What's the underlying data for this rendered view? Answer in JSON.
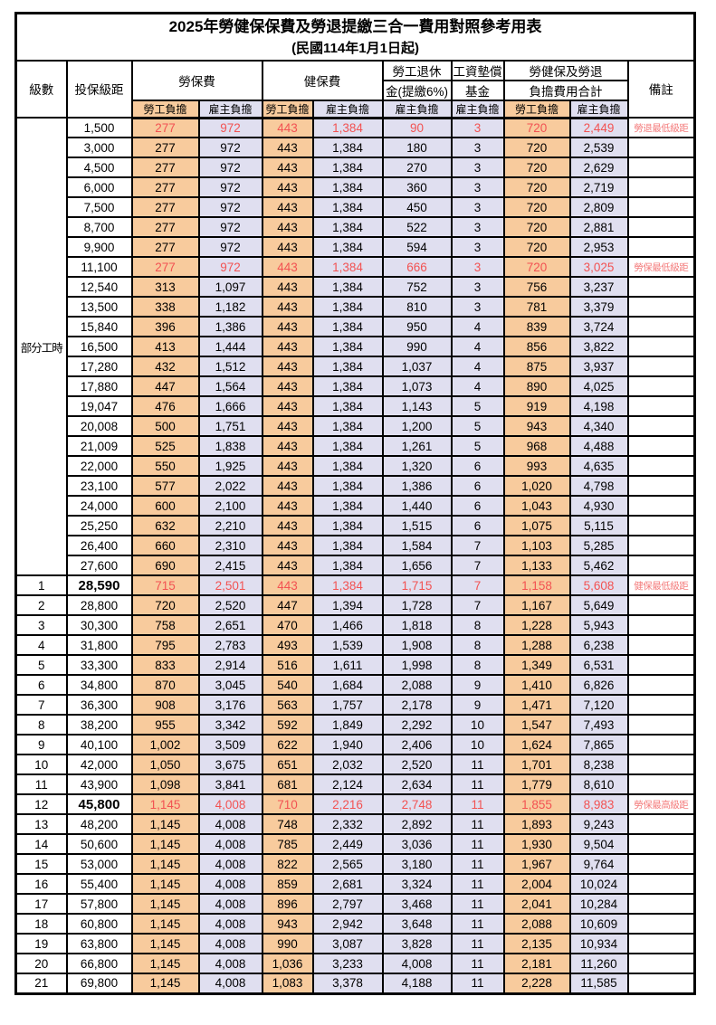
{
  "page": {
    "title": "2025年勞健保保費及勞退提繳三合一費用對照參考用表",
    "subtitle": "(民國114年1月1日起)"
  },
  "table": {
    "headers": {
      "level": "級數",
      "bracket": "投保級距",
      "labor_ins": "勞保費",
      "health_ins": "健保費",
      "pension_l1": "勞工退休",
      "pension_l2": "金(提繳6%)",
      "wage_fund_l1": "工資墊償",
      "wage_fund_l2": "基金",
      "total_l1": "勞健保及勞退",
      "total_l2": "負擔費用合計",
      "note": "備註",
      "employee": "勞工負擔",
      "employer": "雇主負擔"
    },
    "group_label": "部分工時",
    "group_span": 23,
    "colors": {
      "employee_bg": "#F8CB9D",
      "employer_bg": "#E0DFF0",
      "highlight_text": "#F25252",
      "note_text": "#F47C7C",
      "border": "#000000"
    },
    "rows": [
      {
        "level": "",
        "bracket": "1,500",
        "values": [
          "277",
          "972",
          "443",
          "1,384",
          "90",
          "3",
          "720",
          "2,449"
        ],
        "note": "勞退最低級距",
        "highlight": true
      },
      {
        "level": "",
        "bracket": "3,000",
        "values": [
          "277",
          "972",
          "443",
          "1,384",
          "180",
          "3",
          "720",
          "2,539"
        ],
        "note": ""
      },
      {
        "level": "",
        "bracket": "4,500",
        "values": [
          "277",
          "972",
          "443",
          "1,384",
          "270",
          "3",
          "720",
          "2,629"
        ],
        "note": ""
      },
      {
        "level": "",
        "bracket": "6,000",
        "values": [
          "277",
          "972",
          "443",
          "1,384",
          "360",
          "3",
          "720",
          "2,719"
        ],
        "note": ""
      },
      {
        "level": "",
        "bracket": "7,500",
        "values": [
          "277",
          "972",
          "443",
          "1,384",
          "450",
          "3",
          "720",
          "2,809"
        ],
        "note": ""
      },
      {
        "level": "",
        "bracket": "8,700",
        "values": [
          "277",
          "972",
          "443",
          "1,384",
          "522",
          "3",
          "720",
          "2,881"
        ],
        "note": ""
      },
      {
        "level": "",
        "bracket": "9,900",
        "values": [
          "277",
          "972",
          "443",
          "1,384",
          "594",
          "3",
          "720",
          "2,953"
        ],
        "note": ""
      },
      {
        "level": "",
        "bracket": "11,100",
        "values": [
          "277",
          "972",
          "443",
          "1,384",
          "666",
          "3",
          "720",
          "3,025"
        ],
        "note": "勞保最低級距",
        "highlight": true
      },
      {
        "level": "",
        "bracket": "12,540",
        "values": [
          "313",
          "1,097",
          "443",
          "1,384",
          "752",
          "3",
          "756",
          "3,237"
        ],
        "note": ""
      },
      {
        "level": "",
        "bracket": "13,500",
        "values": [
          "338",
          "1,182",
          "443",
          "1,384",
          "810",
          "3",
          "781",
          "3,379"
        ],
        "note": ""
      },
      {
        "level": "",
        "bracket": "15,840",
        "values": [
          "396",
          "1,386",
          "443",
          "1,384",
          "950",
          "4",
          "839",
          "3,724"
        ],
        "note": ""
      },
      {
        "level": "",
        "bracket": "16,500",
        "values": [
          "413",
          "1,444",
          "443",
          "1,384",
          "990",
          "4",
          "856",
          "3,822"
        ],
        "note": ""
      },
      {
        "level": "",
        "bracket": "17,280",
        "values": [
          "432",
          "1,512",
          "443",
          "1,384",
          "1,037",
          "4",
          "875",
          "3,937"
        ],
        "note": ""
      },
      {
        "level": "",
        "bracket": "17,880",
        "values": [
          "447",
          "1,564",
          "443",
          "1,384",
          "1,073",
          "4",
          "890",
          "4,025"
        ],
        "note": ""
      },
      {
        "level": "",
        "bracket": "19,047",
        "values": [
          "476",
          "1,666",
          "443",
          "1,384",
          "1,143",
          "5",
          "919",
          "4,198"
        ],
        "note": ""
      },
      {
        "level": "",
        "bracket": "20,008",
        "values": [
          "500",
          "1,751",
          "443",
          "1,384",
          "1,200",
          "5",
          "943",
          "4,340"
        ],
        "note": ""
      },
      {
        "level": "",
        "bracket": "21,009",
        "values": [
          "525",
          "1,838",
          "443",
          "1,384",
          "1,261",
          "5",
          "968",
          "4,488"
        ],
        "note": ""
      },
      {
        "level": "",
        "bracket": "22,000",
        "values": [
          "550",
          "1,925",
          "443",
          "1,384",
          "1,320",
          "6",
          "993",
          "4,635"
        ],
        "note": ""
      },
      {
        "level": "",
        "bracket": "23,100",
        "values": [
          "577",
          "2,022",
          "443",
          "1,384",
          "1,386",
          "6",
          "1,020",
          "4,798"
        ],
        "note": ""
      },
      {
        "level": "",
        "bracket": "24,000",
        "values": [
          "600",
          "2,100",
          "443",
          "1,384",
          "1,440",
          "6",
          "1,043",
          "4,930"
        ],
        "note": ""
      },
      {
        "level": "",
        "bracket": "25,250",
        "values": [
          "632",
          "2,210",
          "443",
          "1,384",
          "1,515",
          "6",
          "1,075",
          "5,115"
        ],
        "note": ""
      },
      {
        "level": "",
        "bracket": "26,400",
        "values": [
          "660",
          "2,310",
          "443",
          "1,384",
          "1,584",
          "7",
          "1,103",
          "5,285"
        ],
        "note": ""
      },
      {
        "level": "",
        "bracket": "27,600",
        "values": [
          "690",
          "2,415",
          "443",
          "1,384",
          "1,656",
          "7",
          "1,133",
          "5,462"
        ],
        "note": ""
      },
      {
        "level": "1",
        "bracket": "28,590",
        "values": [
          "715",
          "2,501",
          "443",
          "1,384",
          "1,715",
          "7",
          "1,158",
          "5,608"
        ],
        "note": "健保最低級距",
        "highlight": true,
        "bold": true
      },
      {
        "level": "2",
        "bracket": "28,800",
        "values": [
          "720",
          "2,520",
          "447",
          "1,394",
          "1,728",
          "7",
          "1,167",
          "5,649"
        ],
        "note": ""
      },
      {
        "level": "3",
        "bracket": "30,300",
        "values": [
          "758",
          "2,651",
          "470",
          "1,466",
          "1,818",
          "8",
          "1,228",
          "5,943"
        ],
        "note": ""
      },
      {
        "level": "4",
        "bracket": "31,800",
        "values": [
          "795",
          "2,783",
          "493",
          "1,539",
          "1,908",
          "8",
          "1,288",
          "6,238"
        ],
        "note": ""
      },
      {
        "level": "5",
        "bracket": "33,300",
        "values": [
          "833",
          "2,914",
          "516",
          "1,611",
          "1,998",
          "8",
          "1,349",
          "6,531"
        ],
        "note": ""
      },
      {
        "level": "6",
        "bracket": "34,800",
        "values": [
          "870",
          "3,045",
          "540",
          "1,684",
          "2,088",
          "9",
          "1,410",
          "6,826"
        ],
        "note": ""
      },
      {
        "level": "7",
        "bracket": "36,300",
        "values": [
          "908",
          "3,176",
          "563",
          "1,757",
          "2,178",
          "9",
          "1,471",
          "7,120"
        ],
        "note": ""
      },
      {
        "level": "8",
        "bracket": "38,200",
        "values": [
          "955",
          "3,342",
          "592",
          "1,849",
          "2,292",
          "10",
          "1,547",
          "7,493"
        ],
        "note": ""
      },
      {
        "level": "9",
        "bracket": "40,100",
        "values": [
          "1,002",
          "3,509",
          "622",
          "1,940",
          "2,406",
          "10",
          "1,624",
          "7,865"
        ],
        "note": ""
      },
      {
        "level": "10",
        "bracket": "42,000",
        "values": [
          "1,050",
          "3,675",
          "651",
          "2,032",
          "2,520",
          "11",
          "1,701",
          "8,238"
        ],
        "note": ""
      },
      {
        "level": "11",
        "bracket": "43,900",
        "values": [
          "1,098",
          "3,841",
          "681",
          "2,124",
          "2,634",
          "11",
          "1,779",
          "8,610"
        ],
        "note": ""
      },
      {
        "level": "12",
        "bracket": "45,800",
        "values": [
          "1,145",
          "4,008",
          "710",
          "2,216",
          "2,748",
          "11",
          "1,855",
          "8,983"
        ],
        "note": "勞保最高級距",
        "highlight": true,
        "bold": true
      },
      {
        "level": "13",
        "bracket": "48,200",
        "values": [
          "1,145",
          "4,008",
          "748",
          "2,332",
          "2,892",
          "11",
          "1,893",
          "9,243"
        ],
        "note": ""
      },
      {
        "level": "14",
        "bracket": "50,600",
        "values": [
          "1,145",
          "4,008",
          "785",
          "2,449",
          "3,036",
          "11",
          "1,930",
          "9,504"
        ],
        "note": ""
      },
      {
        "level": "15",
        "bracket": "53,000",
        "values": [
          "1,145",
          "4,008",
          "822",
          "2,565",
          "3,180",
          "11",
          "1,967",
          "9,764"
        ],
        "note": ""
      },
      {
        "level": "16",
        "bracket": "55,400",
        "values": [
          "1,145",
          "4,008",
          "859",
          "2,681",
          "3,324",
          "11",
          "2,004",
          "10,024"
        ],
        "note": ""
      },
      {
        "level": "17",
        "bracket": "57,800",
        "values": [
          "1,145",
          "4,008",
          "896",
          "2,797",
          "3,468",
          "11",
          "2,041",
          "10,284"
        ],
        "note": ""
      },
      {
        "level": "18",
        "bracket": "60,800",
        "values": [
          "1,145",
          "4,008",
          "943",
          "2,942",
          "3,648",
          "11",
          "2,088",
          "10,609"
        ],
        "note": ""
      },
      {
        "level": "19",
        "bracket": "63,800",
        "values": [
          "1,145",
          "4,008",
          "990",
          "3,087",
          "3,828",
          "11",
          "2,135",
          "10,934"
        ],
        "note": ""
      },
      {
        "level": "20",
        "bracket": "66,800",
        "values": [
          "1,145",
          "4,008",
          "1,036",
          "3,233",
          "4,008",
          "11",
          "2,181",
          "11,260"
        ],
        "note": ""
      },
      {
        "level": "21",
        "bracket": "69,800",
        "values": [
          "1,145",
          "4,008",
          "1,083",
          "3,378",
          "4,188",
          "11",
          "2,228",
          "11,585"
        ],
        "note": ""
      }
    ]
  }
}
